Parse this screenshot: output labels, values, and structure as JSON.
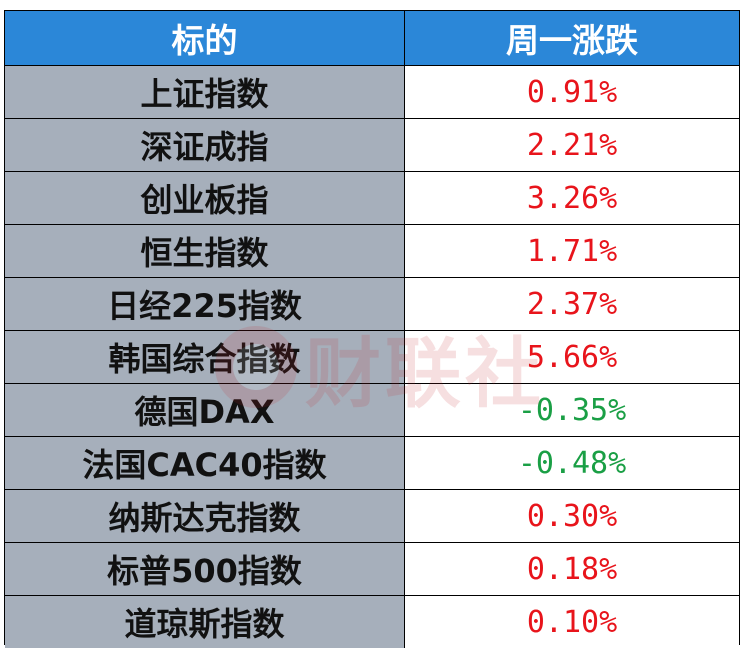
{
  "header": {
    "name": "标的",
    "change": "周一涨跌"
  },
  "rows": [
    {
      "name": "上证指数",
      "change": "0.91%",
      "dir": "pos"
    },
    {
      "name": "深证成指",
      "change": "2.21%",
      "dir": "pos"
    },
    {
      "name": "创业板指",
      "change": "3.26%",
      "dir": "pos"
    },
    {
      "name": "恒生指数",
      "change": "1.71%",
      "dir": "pos"
    },
    {
      "name": "日经225指数",
      "change": "2.37%",
      "dir": "pos"
    },
    {
      "name": "韩国综合指数",
      "change": "5.66%",
      "dir": "pos"
    },
    {
      "name": "德国DAX",
      "change": "-0.35%",
      "dir": "neg"
    },
    {
      "name": "法国CAC40指数",
      "change": "-0.48%",
      "dir": "neg"
    },
    {
      "name": "纳斯达克指数",
      "change": "0.30%",
      "dir": "pos"
    },
    {
      "name": "标普500指数",
      "change": "0.18%",
      "dir": "pos"
    },
    {
      "name": "道琼斯指数",
      "change": "0.10%",
      "dir": "pos"
    }
  ],
  "watermark": {
    "text": "财联社"
  },
  "colors": {
    "header_bg": "#2b87d8",
    "name_bg": "#a6afbb",
    "positive": "#e8141b",
    "negative": "#1a9f45"
  }
}
